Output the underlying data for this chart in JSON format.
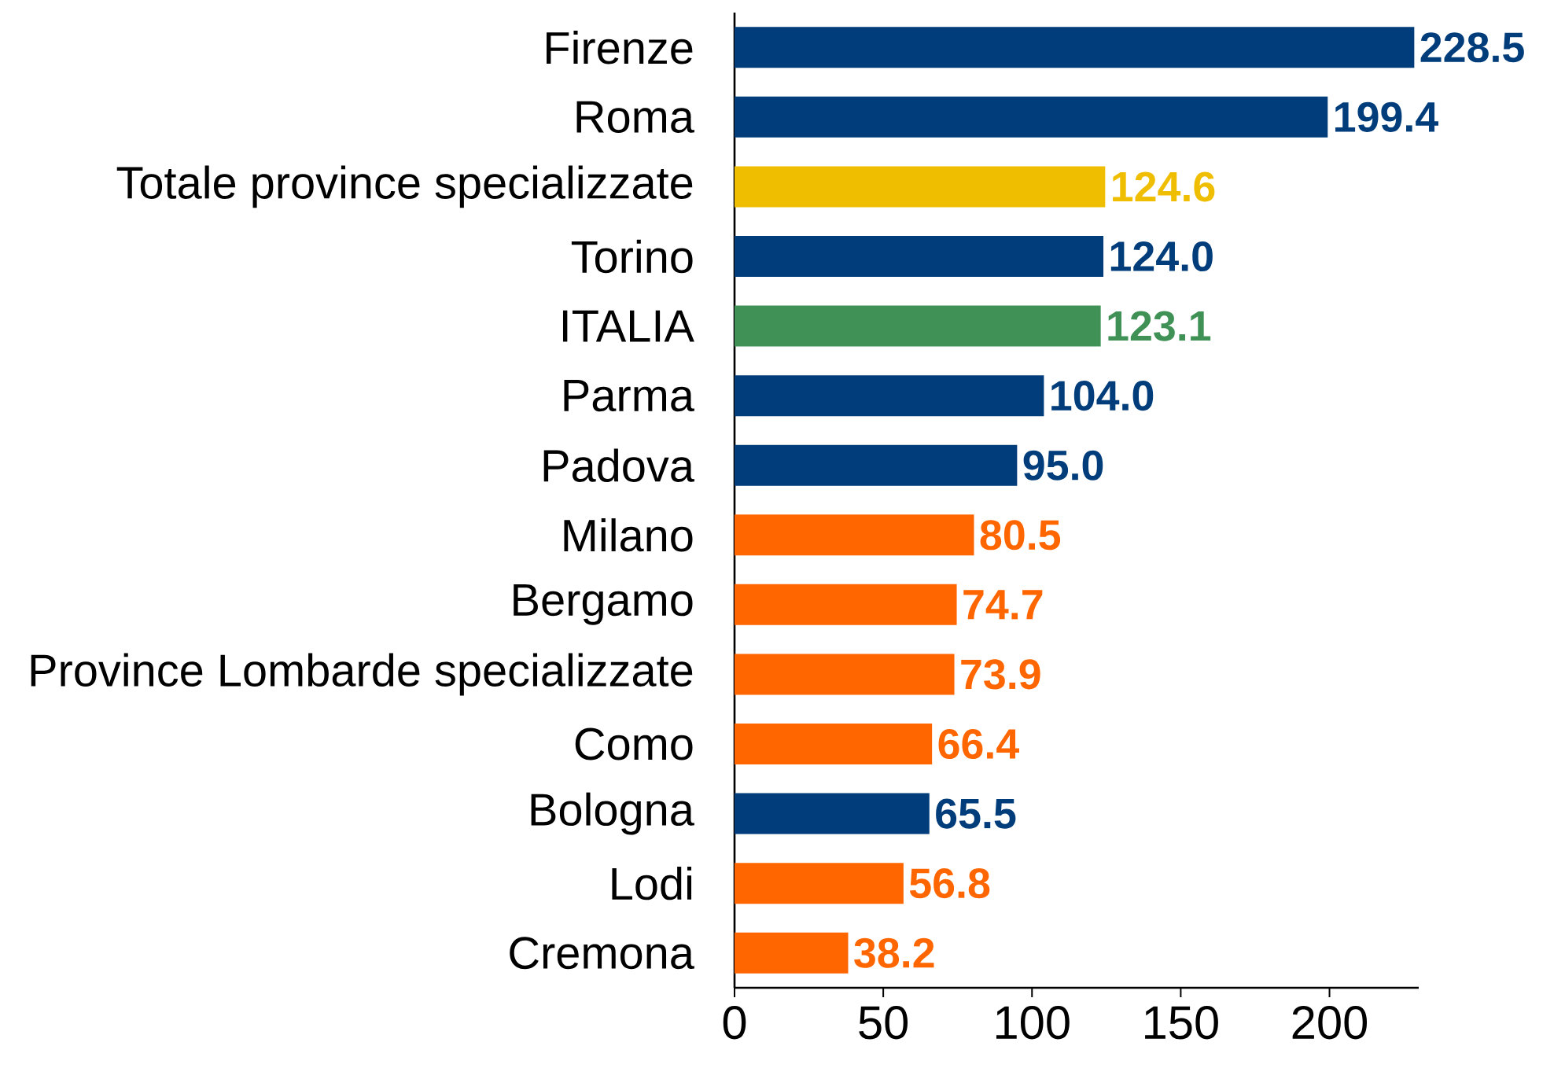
{
  "chart_data": {
    "type": "bar",
    "orientation": "horizontal",
    "categories": [
      "Firenze",
      "Roma",
      "Totale province specializzate",
      "Torino",
      "ITALIA",
      "Parma",
      "Padova",
      "Milano",
      "Bergamo",
      "Province Lombarde specializzate",
      "Como",
      "Bologna",
      "Lodi",
      "Cremona"
    ],
    "values": [
      228.5,
      199.4,
      124.6,
      124.0,
      123.1,
      104.0,
      95.0,
      80.5,
      74.7,
      73.9,
      66.4,
      65.5,
      56.8,
      38.2
    ],
    "colors": [
      "#003d7a",
      "#003d7a",
      "#f0be00",
      "#003d7a",
      "#3f9156",
      "#003d7a",
      "#003d7a",
      "#ff6600",
      "#ff6600",
      "#ff6600",
      "#ff6600",
      "#003d7a",
      "#ff6600",
      "#ff6600"
    ],
    "value_labels": [
      "228.5",
      "199.4",
      "124.6",
      "124.0",
      "123.1",
      "104.0",
      "95.0",
      "80.5",
      "74.7",
      "73.9",
      "66.4",
      "65.5",
      "56.8",
      "38.2"
    ],
    "xlim": [
      0,
      230
    ],
    "xticks": [
      0,
      50,
      100,
      150,
      200
    ]
  }
}
